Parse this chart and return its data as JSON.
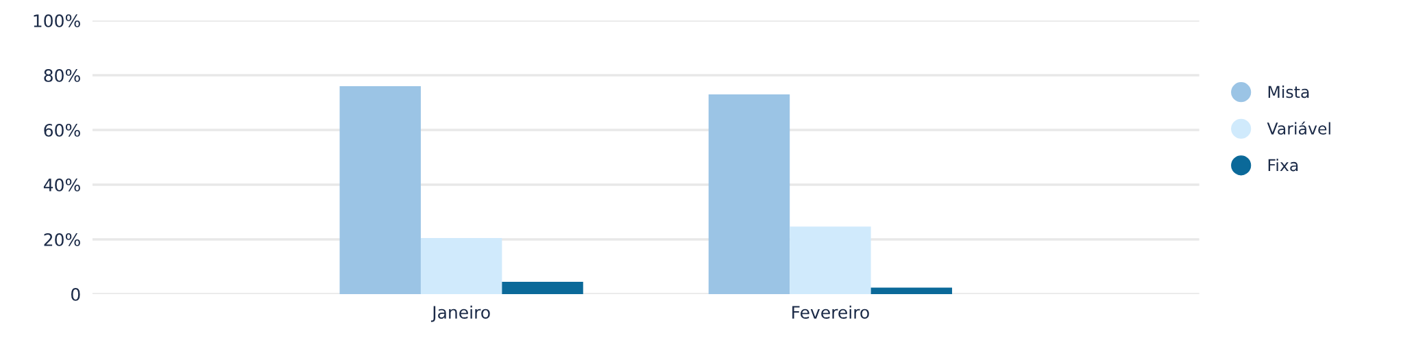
{
  "chart_data": {
    "type": "bar",
    "categories": [
      "Janeiro",
      "Fevereiro"
    ],
    "series": [
      {
        "name": "Mista",
        "color": "#9bc4e5",
        "values": [
          76,
          73
        ]
      },
      {
        "name": "Variável",
        "color": "#d0eafc",
        "values": [
          20.5,
          24.7
        ]
      },
      {
        "name": "Fixa",
        "color": "#0b6999",
        "values": [
          4.5,
          2.4
        ]
      }
    ],
    "ylim": [
      0,
      100
    ],
    "yticks": [
      0,
      {
        "value": 20,
        "label": "20%"
      },
      {
        "value": 40,
        "label": "40%"
      },
      {
        "value": 60,
        "label": "60%"
      },
      {
        "value": 80,
        "label": "80%"
      },
      {
        "value": 100,
        "label": "100%"
      }
    ],
    "grid": "y",
    "legend": "right"
  }
}
